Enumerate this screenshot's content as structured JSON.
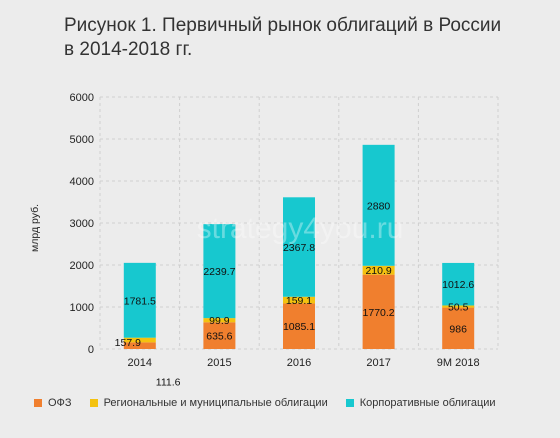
{
  "title_line1": "Рисунок 1. Первичный рынок облигаций в России",
  "title_line2": "в 2014-2018 гг.",
  "watermark": "strategy4you.ru",
  "colors": {
    "ofz": "#f07f2e",
    "regional": "#f4c20f",
    "corporate": "#17c8cf",
    "grid": "#cfcfcf"
  },
  "chart_data": {
    "type": "bar",
    "stacked": true,
    "title": "Рисунок 1. Первичный рынок облигаций в России в 2014-2018 гг.",
    "ylabel": "млрд руб.",
    "xlabel": "",
    "ylim": [
      0,
      6000
    ],
    "yticks": [
      0,
      1000,
      2000,
      3000,
      4000,
      5000,
      6000
    ],
    "categories": [
      "2014",
      "2015",
      "2016",
      "2017",
      "9M 2018"
    ],
    "series": [
      {
        "name": "ОФЗ",
        "values": [
          157.9,
          635.6,
          1085.1,
          1770.2,
          986
        ],
        "labels": [
          "157.9",
          "635.6",
          "1085.1",
          "1770.2",
          "986"
        ]
      },
      {
        "name": "Региональные и муниципальные облигации",
        "values": [
          111.6,
          99.9,
          159.1,
          210.9,
          50.5
        ],
        "labels": [
          "111.6",
          "99.9",
          "159.1",
          "210.9",
          "50.5"
        ]
      },
      {
        "name": "Корпоративные облигации",
        "values": [
          1781.5,
          2239.7,
          2367.8,
          2880,
          1012.6
        ],
        "labels": [
          "1781.5",
          "2239.7",
          "2367.8",
          "2880",
          "1012.6"
        ]
      }
    ],
    "legend_position": "bottom",
    "grid": true
  }
}
